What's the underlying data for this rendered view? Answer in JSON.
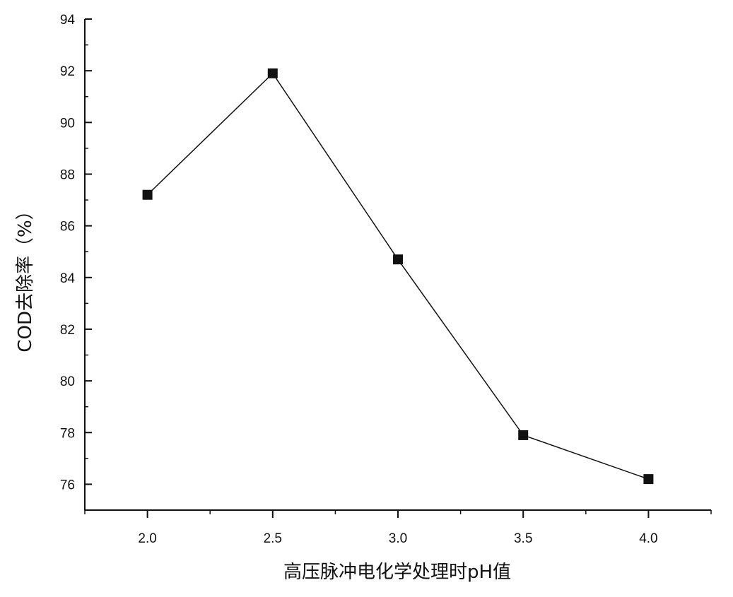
{
  "chart_data": {
    "type": "line",
    "xlabel": "高压脉冲电化学处理时pH值",
    "ylabel": "COD去除率（%）",
    "x": [
      2.0,
      2.5,
      3.0,
      3.5,
      4.0
    ],
    "series": [
      {
        "values": [
          87.2,
          91.9,
          84.7,
          77.9,
          76.2
        ]
      }
    ],
    "xlim": [
      1.75,
      4.25
    ],
    "ylim": [
      75,
      94
    ],
    "x_ticks": [
      "2.0",
      "2.5",
      "3.0",
      "3.5",
      "4.0"
    ],
    "y_ticks": [
      "76",
      "78",
      "80",
      "82",
      "84",
      "86",
      "88",
      "90",
      "92",
      "94"
    ],
    "marker": "square",
    "line_color": "#111111",
    "marker_color": "#111111",
    "grid": false,
    "legend": "none"
  }
}
